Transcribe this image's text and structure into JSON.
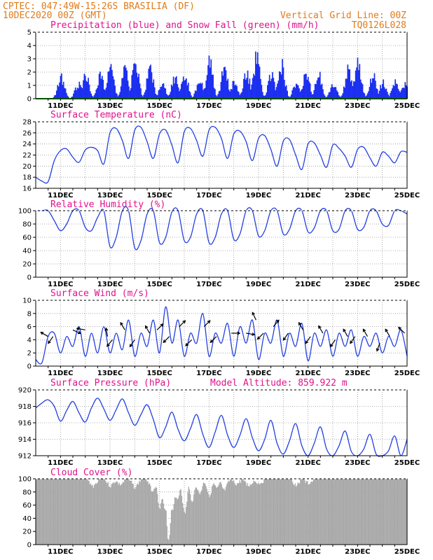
{
  "header": {
    "line1_left": "CPTEC:   047:49W-15:26S   BRASILIA (DF)",
    "line2_left": "10DEC2020 00Z (GMT)",
    "line2_right": "Vertical Grid Line: 00Z",
    "line3_right": "TQ0126L028"
  },
  "colors": {
    "precip": "#1c2ff0",
    "snow": "#00a000",
    "line": "#2340e0",
    "cloud": "#a8a8a8",
    "title": "#e0118c",
    "header": "#e07b1a"
  },
  "date_labels": [
    "11DEC",
    "13DEC",
    "15DEC",
    "17DEC",
    "19DEC",
    "21DEC",
    "23DEC",
    "25DEC"
  ],
  "chart_data": [
    {
      "id": "precip",
      "type": "bar",
      "title": "Precipitation (blue) and Snow Fall (green) (mm/h)",
      "ylim": [
        0,
        5
      ],
      "yticks": [
        0,
        1,
        2,
        3,
        4,
        5
      ],
      "xrange_days": [
        10.0,
        25.0
      ],
      "series": [
        {
          "name": "Precipitation",
          "color": "blue",
          "peaks": [
            [
              11.0,
              2.1
            ],
            [
              11.7,
              1.4
            ],
            [
              12.0,
              2.2
            ],
            [
              12.6,
              2.3
            ],
            [
              13.0,
              2.8
            ],
            [
              13.6,
              2.8
            ],
            [
              14.0,
              3.4
            ],
            [
              14.6,
              2.8
            ],
            [
              15.1,
              1.4
            ],
            [
              15.6,
              2.0
            ],
            [
              16.0,
              2.3
            ],
            [
              16.6,
              1.7
            ],
            [
              17.0,
              3.4
            ],
            [
              17.6,
              2.8
            ],
            [
              18.0,
              1.5
            ],
            [
              18.5,
              2.4
            ],
            [
              18.9,
              3.8
            ],
            [
              19.5,
              2.2
            ],
            [
              19.9,
              3.3
            ],
            [
              20.5,
              1.5
            ],
            [
              20.9,
              2.6
            ],
            [
              21.4,
              2.3
            ],
            [
              22.0,
              1.5
            ],
            [
              22.6,
              2.6
            ],
            [
              23.0,
              3.5
            ],
            [
              23.6,
              2.3
            ],
            [
              24.0,
              1.5
            ],
            [
              24.5,
              1.6
            ],
            [
              24.9,
              1.4
            ]
          ]
        },
        {
          "name": "Snow Fall",
          "color": "green",
          "value": 0
        }
      ]
    },
    {
      "id": "temp",
      "type": "line",
      "title": "Surface Temperature (nC)",
      "ylim": [
        16,
        28
      ],
      "yticks": [
        16,
        18,
        20,
        22,
        24,
        26,
        28
      ],
      "x": [
        10.0,
        10.25,
        10.5,
        10.75,
        11.0,
        11.25,
        11.5,
        11.75,
        12.0,
        12.25,
        12.5,
        12.75,
        13.0,
        13.25,
        13.5,
        13.75,
        14.0,
        14.25,
        14.5,
        14.75,
        15.0,
        15.25,
        15.5,
        15.75,
        16.0,
        16.25,
        16.5,
        16.75,
        17.0,
        17.25,
        17.5,
        17.75,
        18.0,
        18.25,
        18.5,
        18.75,
        19.0,
        19.25,
        19.5,
        19.75,
        20.0,
        20.25,
        20.5,
        20.75,
        21.0,
        21.25,
        21.5,
        21.75,
        22.0,
        22.25,
        22.5,
        22.75,
        23.0,
        23.25,
        23.5,
        23.75,
        24.0,
        24.25,
        24.5,
        24.75,
        25.0
      ],
      "y": [
        18.0,
        17.3,
        17.2,
        21.0,
        22.8,
        23.1,
        21.6,
        20.7,
        22.9,
        23.4,
        22.8,
        20.4,
        26.0,
        26.8,
        24.6,
        21.4,
        26.5,
        27.0,
        24.4,
        21.4,
        25.8,
        26.5,
        23.8,
        20.6,
        26.2,
        26.8,
        24.6,
        21.8,
        26.5,
        27.0,
        25.0,
        21.4,
        25.8,
        26.3,
        24.4,
        21.0,
        25.0,
        25.5,
        23.0,
        20.0,
        24.5,
        24.8,
        22.0,
        19.4,
        24.0,
        24.2,
        22.0,
        19.8,
        23.8,
        23.2,
        21.8,
        19.8,
        23.0,
        23.4,
        21.5,
        20.0,
        22.5,
        21.8,
        20.6,
        22.6,
        22.5
      ]
    },
    {
      "id": "rh",
      "type": "line",
      "title": "Relative Humidity (%)",
      "ylim": [
        0,
        100
      ],
      "yticks": [
        0,
        20,
        40,
        60,
        80,
        100
      ],
      "x": [
        10.0,
        10.25,
        10.5,
        10.75,
        11.0,
        11.25,
        11.5,
        11.75,
        12.0,
        12.25,
        12.5,
        12.75,
        13.0,
        13.25,
        13.5,
        13.75,
        14.0,
        14.25,
        14.5,
        14.75,
        15.0,
        15.25,
        15.5,
        15.75,
        16.0,
        16.25,
        16.5,
        16.75,
        17.0,
        17.25,
        17.5,
        17.75,
        18.0,
        18.25,
        18.5,
        18.75,
        19.0,
        19.25,
        19.5,
        19.75,
        20.0,
        20.25,
        20.5,
        20.75,
        21.0,
        21.25,
        21.5,
        21.75,
        22.0,
        22.25,
        22.5,
        22.75,
        23.0,
        23.25,
        23.5,
        23.75,
        24.0,
        24.25,
        24.5,
        24.75,
        25.0
      ],
      "y": [
        100,
        100,
        100,
        85,
        70,
        80,
        100,
        100,
        75,
        70,
        90,
        100,
        46,
        60,
        100,
        100,
        44,
        55,
        95,
        100,
        52,
        60,
        98,
        100,
        55,
        60,
        95,
        100,
        52,
        60,
        95,
        100,
        57,
        65,
        100,
        100,
        62,
        70,
        100,
        100,
        65,
        72,
        100,
        100,
        68,
        74,
        100,
        100,
        70,
        72,
        100,
        100,
        72,
        75,
        100,
        100,
        80,
        78,
        100,
        100,
        95
      ]
    },
    {
      "id": "wind",
      "type": "line",
      "title": "Surface Wind (m/s)",
      "ylim": [
        0,
        10
      ],
      "yticks": [
        0,
        2,
        4,
        6,
        8,
        10
      ],
      "x": [
        10.0,
        10.25,
        10.5,
        10.75,
        11.0,
        11.25,
        11.5,
        11.75,
        12.0,
        12.25,
        12.5,
        12.75,
        13.0,
        13.25,
        13.5,
        13.75,
        14.0,
        14.25,
        14.5,
        14.75,
        15.0,
        15.25,
        15.5,
        15.75,
        16.0,
        16.25,
        16.5,
        16.75,
        17.0,
        17.25,
        17.5,
        17.75,
        18.0,
        18.25,
        18.5,
        18.75,
        19.0,
        19.25,
        19.5,
        19.75,
        20.0,
        20.25,
        20.5,
        20.75,
        21.0,
        21.25,
        21.5,
        21.75,
        22.0,
        22.25,
        22.5,
        22.75,
        23.0,
        23.25,
        23.5,
        23.75,
        24.0,
        24.25,
        24.5,
        24.75,
        25.0
      ],
      "y": [
        1.0,
        0.5,
        4.5,
        5.0,
        2.0,
        4.5,
        3.0,
        6.0,
        1.5,
        5.0,
        2.0,
        6.0,
        2.0,
        5.0,
        2.5,
        7.0,
        1.5,
        5.0,
        3.0,
        7.0,
        2.0,
        9.0,
        3.5,
        7.0,
        1.5,
        5.0,
        3.5,
        8.0,
        1.5,
        5.0,
        3.5,
        6.5,
        1.5,
        6.0,
        3.5,
        7.0,
        1.0,
        5.0,
        3.5,
        7.0,
        1.5,
        5.0,
        3.0,
        6.5,
        0.8,
        5.0,
        3.0,
        5.5,
        1.5,
        5.0,
        3.0,
        5.5,
        1.5,
        4.5,
        3.0,
        5.0,
        2.0,
        4.5,
        3.0,
        5.5,
        1.5
      ],
      "wind_arrows": [
        {
          "x": 10.5,
          "speed": 4.5,
          "dir_deg": 300
        },
        {
          "x": 10.7,
          "speed": 4.5,
          "dir_deg": 215
        },
        {
          "x": 11.5,
          "speed": 5.5,
          "dir_deg": 115
        },
        {
          "x": 12.0,
          "speed": 5.5,
          "dir_deg": 280
        },
        {
          "x": 12.9,
          "speed": 4.5,
          "dir_deg": 350
        },
        {
          "x": 13.1,
          "speed": 4.0,
          "dir_deg": 220
        },
        {
          "x": 13.6,
          "speed": 5.5,
          "dir_deg": 330
        },
        {
          "x": 14.0,
          "speed": 4.0,
          "dir_deg": 215
        },
        {
          "x": 14.6,
          "speed": 5.0,
          "dir_deg": 330
        },
        {
          "x": 14.9,
          "speed": 5.5,
          "dir_deg": 45
        },
        {
          "x": 15.4,
          "speed": 4.5,
          "dir_deg": 225
        },
        {
          "x": 15.8,
          "speed": 6.0,
          "dir_deg": 45
        },
        {
          "x": 16.3,
          "speed": 4.0,
          "dir_deg": 225
        },
        {
          "x": 16.8,
          "speed": 6.0,
          "dir_deg": 45
        },
        {
          "x": 17.3,
          "speed": 4.5,
          "dir_deg": 225
        },
        {
          "x": 17.9,
          "speed": 5.0,
          "dir_deg": 90
        },
        {
          "x": 18.5,
          "speed": 5.0,
          "dir_deg": 100
        },
        {
          "x": 18.9,
          "speed": 7.0,
          "dir_deg": 335
        },
        {
          "x": 19.2,
          "speed": 5.0,
          "dir_deg": 225
        },
        {
          "x": 19.6,
          "speed": 6.0,
          "dir_deg": 40
        },
        {
          "x": 20.2,
          "speed": 5.0,
          "dir_deg": 215
        },
        {
          "x": 20.8,
          "speed": 5.5,
          "dir_deg": 330
        },
        {
          "x": 21.1,
          "speed": 4.5,
          "dir_deg": 215
        },
        {
          "x": 21.6,
          "speed": 5.0,
          "dir_deg": 330
        },
        {
          "x": 22.1,
          "speed": 4.0,
          "dir_deg": 215
        },
        {
          "x": 22.6,
          "speed": 4.5,
          "dir_deg": 330
        },
        {
          "x": 22.9,
          "speed": 4.5,
          "dir_deg": 215
        },
        {
          "x": 23.4,
          "speed": 4.5,
          "dir_deg": 330
        },
        {
          "x": 23.9,
          "speed": 3.5,
          "dir_deg": 200
        },
        {
          "x": 24.3,
          "speed": 4.5,
          "dir_deg": 330
        },
        {
          "x": 24.9,
          "speed": 5.0,
          "dir_deg": 315
        }
      ]
    },
    {
      "id": "pres",
      "type": "line",
      "title": "Surface Pressure (hPa)",
      "subtitle": "Model Altitude: 859.922 m",
      "ylim": [
        912,
        920
      ],
      "yticks": [
        912,
        914,
        916,
        918,
        920
      ],
      "x": [
        10.0,
        10.25,
        10.5,
        10.75,
        11.0,
        11.25,
        11.5,
        11.75,
        12.0,
        12.25,
        12.5,
        12.75,
        13.0,
        13.25,
        13.5,
        13.75,
        14.0,
        14.25,
        14.5,
        14.75,
        15.0,
        15.25,
        15.5,
        15.75,
        16.0,
        16.25,
        16.5,
        16.75,
        17.0,
        17.25,
        17.5,
        17.75,
        18.0,
        18.25,
        18.5,
        18.75,
        19.0,
        19.25,
        19.5,
        19.75,
        20.0,
        20.25,
        20.5,
        20.75,
        21.0,
        21.25,
        21.5,
        21.75,
        22.0,
        22.25,
        22.5,
        22.75,
        23.0,
        23.25,
        23.5,
        23.75,
        24.0,
        24.25,
        24.5,
        24.75,
        25.0
      ],
      "y": [
        917.8,
        918.4,
        918.8,
        918.0,
        916.2,
        917.5,
        918.6,
        917.2,
        916.1,
        917.8,
        919.0,
        917.7,
        916.3,
        917.6,
        918.9,
        917.2,
        915.7,
        917.0,
        918.2,
        916.4,
        914.2,
        915.5,
        917.3,
        915.2,
        913.8,
        915.3,
        917.0,
        914.6,
        913.0,
        914.9,
        916.9,
        914.5,
        913.0,
        914.5,
        916.5,
        914.2,
        912.6,
        914.0,
        916.3,
        913.5,
        912.2,
        913.8,
        915.9,
        913.2,
        912.0,
        913.5,
        915.5,
        912.8,
        911.8,
        913.2,
        915.0,
        912.5,
        911.7,
        912.8,
        914.6,
        912.2,
        911.7,
        912.6,
        914.4,
        912.0,
        914.0
      ]
    },
    {
      "id": "cloud",
      "type": "bar",
      "title": "Cloud Cover (%)",
      "ylim": [
        0,
        100
      ],
      "yticks": [
        0,
        20,
        40,
        60,
        80,
        100
      ],
      "base": 100,
      "dips": [
        [
          12.3,
          92
        ],
        [
          13.0,
          92
        ],
        [
          13.4,
          94
        ],
        [
          14.0,
          90
        ],
        [
          14.7,
          85
        ],
        [
          15.0,
          60
        ],
        [
          15.2,
          55
        ],
        [
          15.35,
          10
        ],
        [
          15.5,
          55
        ],
        [
          15.7,
          70
        ],
        [
          16.0,
          50
        ],
        [
          16.3,
          70
        ],
        [
          16.6,
          80
        ],
        [
          17.0,
          78
        ],
        [
          17.3,
          88
        ],
        [
          17.6,
          85
        ],
        [
          18.1,
          95
        ],
        [
          18.6,
          92
        ],
        [
          19.0,
          96
        ],
        [
          20.5,
          94
        ],
        [
          21.0,
          96
        ]
      ]
    }
  ]
}
